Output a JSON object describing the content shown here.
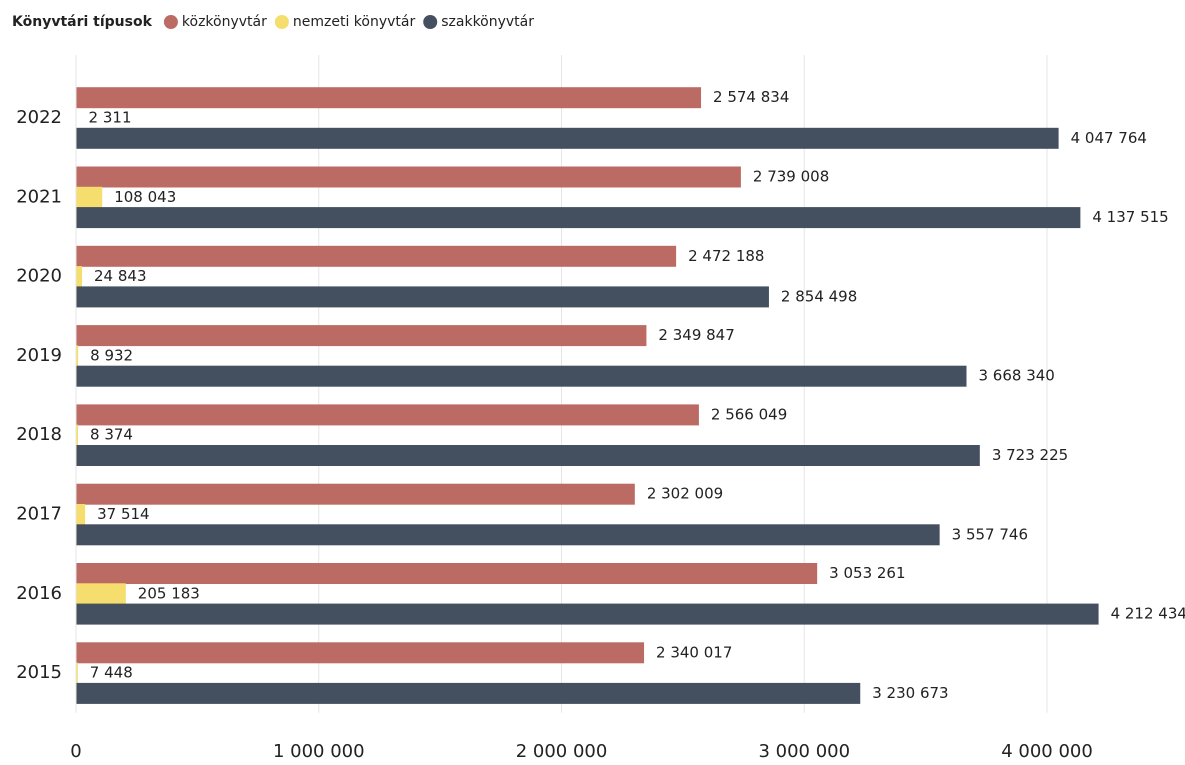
{
  "chart_data": {
    "type": "hbar",
    "legend_title": "Könyvtári típusok",
    "legend": "top-left",
    "grid": true,
    "categories": [
      "2022",
      "2021",
      "2020",
      "2019",
      "2018",
      "2017",
      "2016",
      "2015"
    ],
    "series": [
      {
        "name": "közkönyvtár",
        "color": "#bc6b64",
        "values": [
          2574834,
          2739008,
          2472188,
          2349847,
          2566049,
          2302009,
          3053261,
          2340017
        ],
        "value_labels": [
          "2 574 834",
          "2 739 008",
          "2 472 188",
          "2 349 847",
          "2 566 049",
          "2 302 009",
          "3 053 261",
          "2 340 017"
        ]
      },
      {
        "name": "nemzeti könyvtár",
        "color": "#f5dd6e",
        "values": [
          2311,
          108043,
          24843,
          8932,
          8374,
          37514,
          205183,
          7448
        ],
        "value_labels": [
          "2 311",
          "108 043",
          "24 843",
          "8 932",
          "8 374",
          "37 514",
          "205 183",
          "7 448"
        ]
      },
      {
        "name": "szakkönyvtár",
        "color": "#444f5f",
        "values": [
          4047764,
          4137515,
          2854498,
          3668340,
          3723225,
          3557746,
          4212434,
          3230673
        ],
        "value_labels": [
          "4 047 764",
          "4 137 515",
          "2 854 498",
          "3 668 340",
          "3 723 225",
          "3 557 746",
          "4 212 434",
          "3 230 673"
        ]
      }
    ],
    "xlim": [
      0,
      4400000
    ],
    "xticks": [
      0,
      {
        "value": 1000000,
        "label": "1 000 000"
      },
      {
        "value": 2000000,
        "label": "2 000 000"
      },
      {
        "value": 3000000,
        "label": "3 000 000"
      },
      {
        "value": 4000000,
        "label": "4 000 000"
      }
    ]
  }
}
